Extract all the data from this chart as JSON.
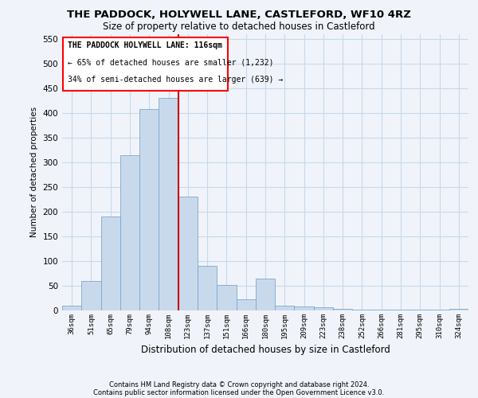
{
  "title": "THE PADDOCK, HOLYWELL LANE, CASTLEFORD, WF10 4RZ",
  "subtitle": "Size of property relative to detached houses in Castleford",
  "xlabel": "Distribution of detached houses by size in Castleford",
  "ylabel": "Number of detached properties",
  "categories": [
    "36sqm",
    "51sqm",
    "65sqm",
    "79sqm",
    "94sqm",
    "108sqm",
    "123sqm",
    "137sqm",
    "151sqm",
    "166sqm",
    "180sqm",
    "195sqm",
    "209sqm",
    "223sqm",
    "238sqm",
    "252sqm",
    "266sqm",
    "281sqm",
    "295sqm",
    "310sqm",
    "324sqm"
  ],
  "values": [
    10,
    60,
    190,
    315,
    408,
    430,
    230,
    90,
    52,
    22,
    65,
    10,
    8,
    6,
    4,
    2,
    2,
    1,
    1,
    1,
    4
  ],
  "bar_color": "#c9d9ec",
  "bar_edge_color": "#7aa8cc",
  "vline_x_idx": 5.5,
  "vline_color": "#cc0000",
  "ylim": [
    0,
    560
  ],
  "yticks": [
    0,
    50,
    100,
    150,
    200,
    250,
    300,
    350,
    400,
    450,
    500,
    550
  ],
  "annotation_title": "THE PADDOCK HOLYWELL LANE: 116sqm",
  "annotation_line1": "← 65% of detached houses are smaller (1,232)",
  "annotation_line2": "34% of semi-detached houses are larger (639) →",
  "footer_line1": "Contains HM Land Registry data © Crown copyright and database right 2024.",
  "footer_line2": "Contains public sector information licensed under the Open Government Licence v3.0.",
  "bg_color": "#f0f4fa",
  "grid_color": "#c8d8ea",
  "title_fontsize": 9.5,
  "subtitle_fontsize": 8.5
}
